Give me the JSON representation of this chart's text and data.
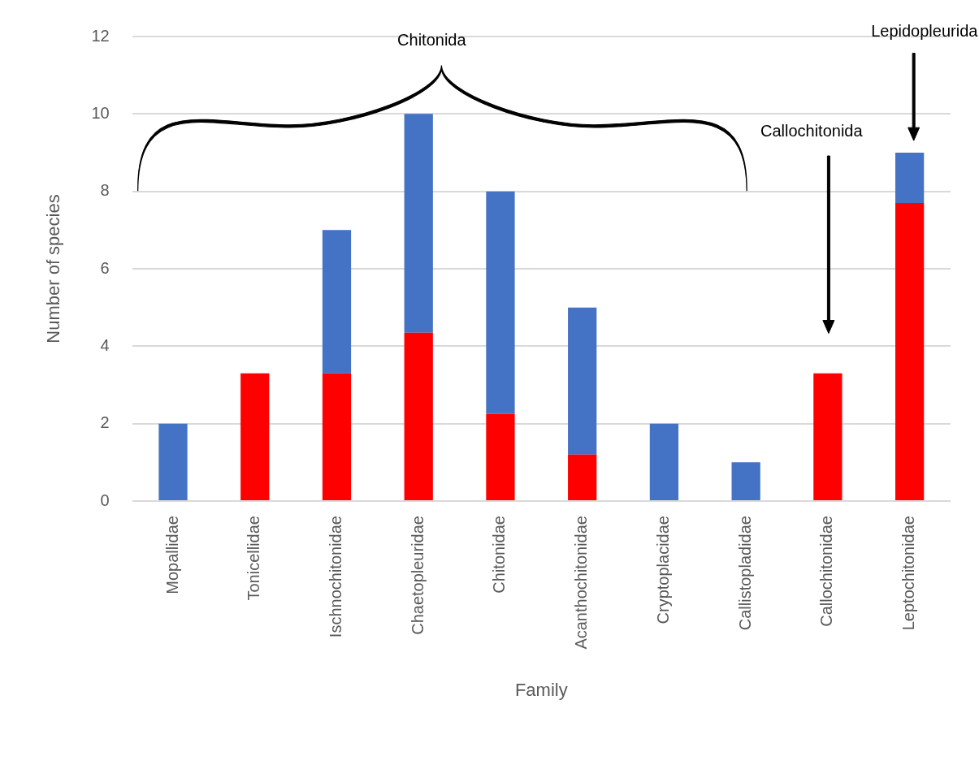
{
  "chart_data": {
    "type": "bar",
    "xlabel": "Family",
    "ylabel": "Number of species",
    "categories": [
      "Mopallidae",
      "Tonicellidae",
      "Ischnochitonidae",
      "Chaetopleuridae",
      "Chitonidae",
      "Acanthochitonidae",
      "Cryptoplacidae",
      "Callistopladidae",
      "Callochitonidae",
      "Leptochitonidae"
    ],
    "stacked": true,
    "series": [
      {
        "color": "#ff0000",
        "values": [
          null,
          3.3,
          3.3,
          4.35,
          2.25,
          1.2,
          null,
          null,
          3.3,
          7.7
        ]
      },
      {
        "color": "#4472c4",
        "values": [
          2,
          null,
          3.7,
          5.65,
          5.75,
          3.8,
          2,
          1,
          null,
          1.3
        ]
      }
    ],
    "ylim": [
      0,
      12
    ],
    "yticks": [
      0,
      2,
      4,
      6,
      8,
      10,
      12
    ],
    "grid": "y",
    "legend": false,
    "annotations": [
      "Chitonida",
      "Callochitonida",
      "Lepidopleurida"
    ]
  }
}
